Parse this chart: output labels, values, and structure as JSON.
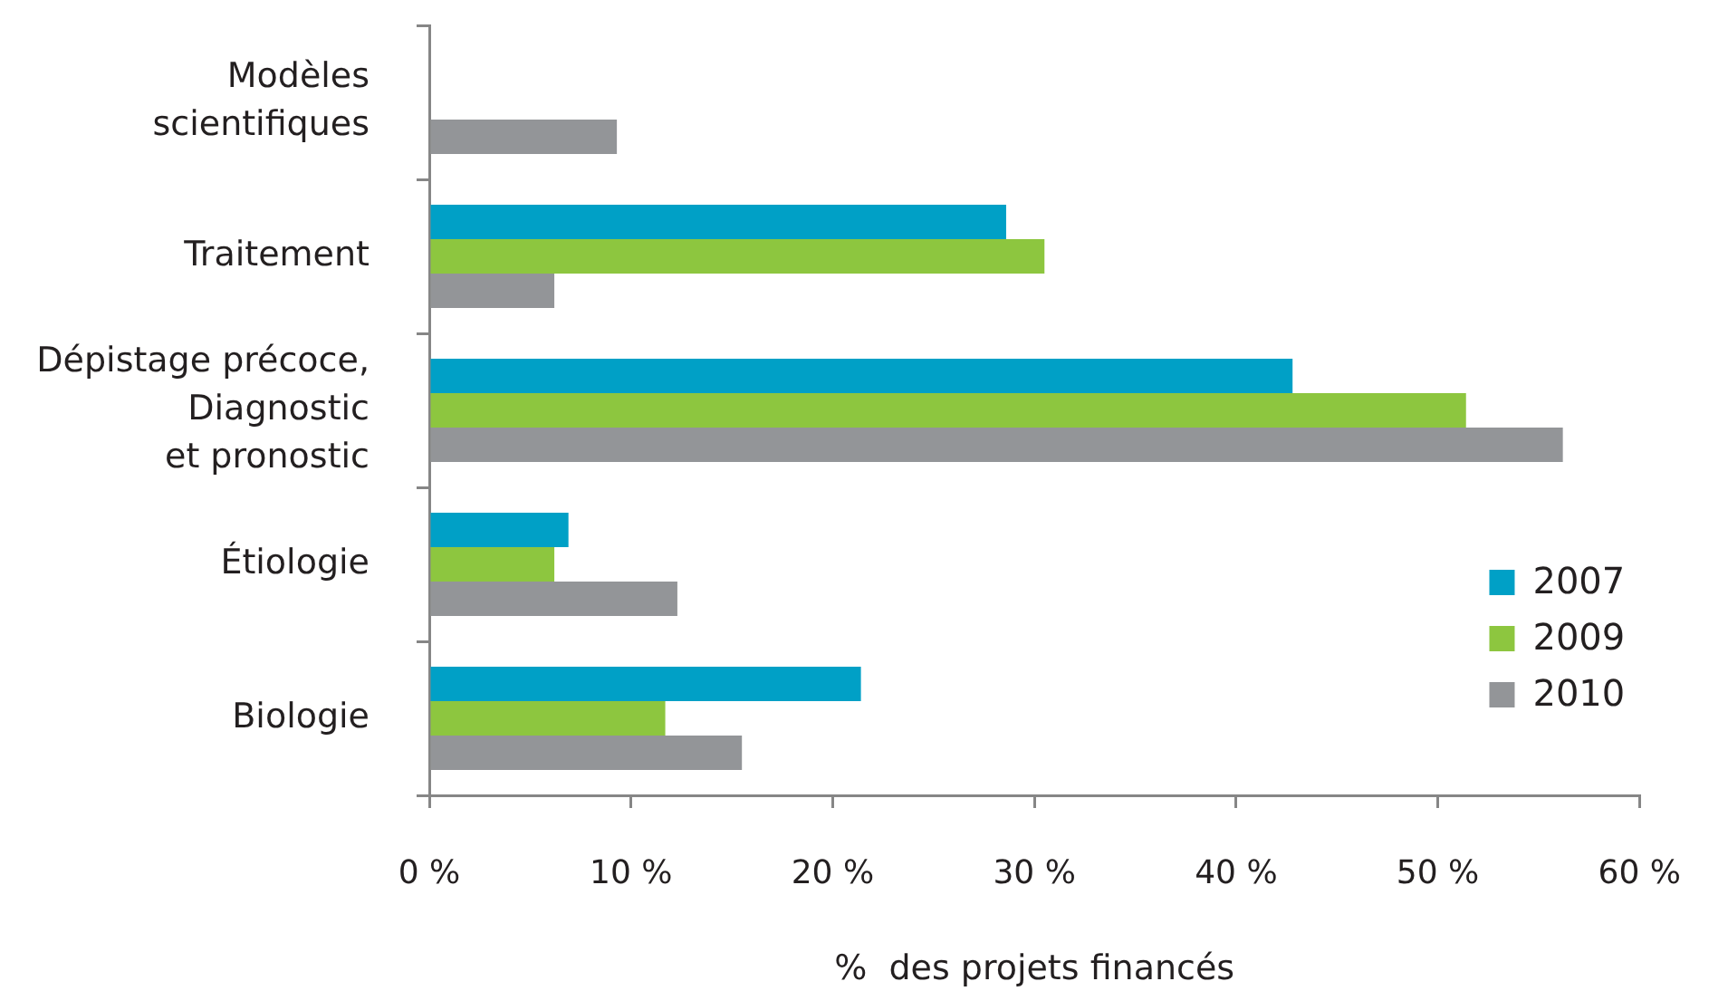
{
  "chart_data": {
    "type": "bar",
    "orientation": "horizontal",
    "categories": [
      "Modèles\nscientifiques",
      "Traitement",
      "Dépistage précoce,\nDiagnostic\net pronostic",
      "Étiologie",
      "Biologie"
    ],
    "series": [
      {
        "name": "2007",
        "color": "#00a0c6",
        "values": [
          null,
          28.6,
          42.8,
          6.9,
          21.4
        ]
      },
      {
        "name": "2009",
        "color": "#8dc63f",
        "values": [
          null,
          30.5,
          51.4,
          6.2,
          11.7
        ]
      },
      {
        "name": "2010",
        "color": "#939598",
        "values": [
          9.3,
          6.2,
          56.2,
          12.3,
          15.5
        ]
      }
    ],
    "xlabel": "%  des projets financés",
    "xlim": [
      0,
      60
    ],
    "xticks": [
      {
        "value": 0,
        "label": "0 %"
      },
      {
        "value": 10,
        "label": "10 %"
      },
      {
        "value": 20,
        "label": "20 %"
      },
      {
        "value": 30,
        "label": "30 %"
      },
      {
        "value": 40,
        "label": "40 %"
      },
      {
        "value": 50,
        "label": "50 %"
      },
      {
        "value": 60,
        "label": "60 %"
      }
    ],
    "grid": false,
    "legend": "bottom right"
  }
}
